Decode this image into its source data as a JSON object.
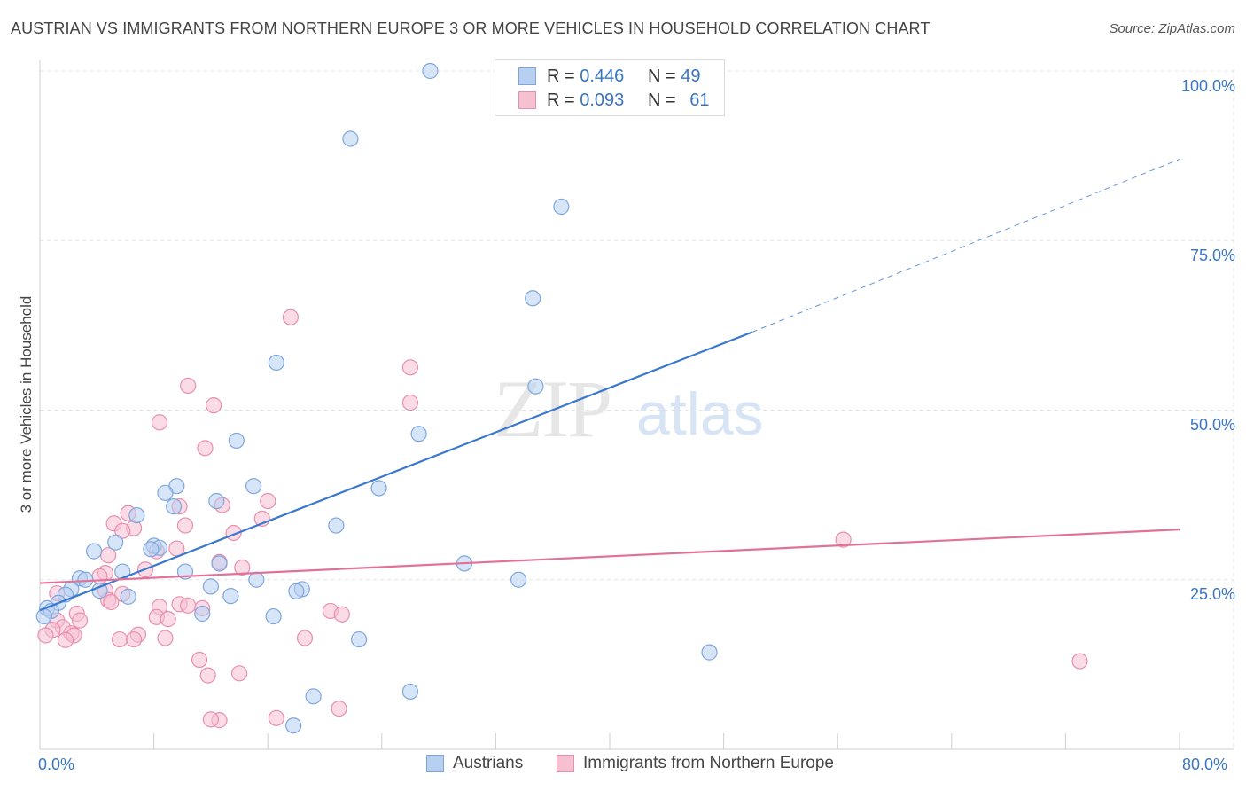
{
  "title": "AUSTRIAN VS IMMIGRANTS FROM NORTHERN EUROPE 3 OR MORE VEHICLES IN HOUSEHOLD CORRELATION CHART",
  "source": "Source: ZipAtlas.com",
  "watermark": {
    "zip": "ZIP",
    "atlas": "atlas"
  },
  "legend_top": [
    {
      "r_label": "R = ",
      "r_value": "0.446",
      "n_label": "N = ",
      "n_value": "49"
    },
    {
      "r_label": "R = ",
      "r_value": "0.093",
      "n_label": "N = ",
      "n_value": "61"
    }
  ],
  "legend_bottom": [
    {
      "label": "Austrians"
    },
    {
      "label": "Immigrants from Northern Europe"
    }
  ],
  "x_ticks": {
    "min_label": "0.0%",
    "max_label": "80.0%"
  },
  "y_ticks": [
    "100.0%",
    "75.0%",
    "50.0%",
    "25.0%"
  ],
  "colors": {
    "blue_fill": "#b7d0f2",
    "blue_stroke": "#7ea6de",
    "blue_line": "#3a78d0",
    "pink_fill": "#f7c0d1",
    "pink_stroke": "#e98fae",
    "pink_line": "#e2719a",
    "grid": "#e3e3e3",
    "tick_text": "#3a75c4"
  },
  "chart_data": {
    "type": "scatter",
    "title": "AUSTRIAN VS IMMIGRANTS FROM NORTHERN EUROPE 3 OR MORE VEHICLES IN HOUSEHOLD CORRELATION CHART",
    "xlabel": "",
    "ylabel": "3 or more Vehicles in Household",
    "xlim": [
      0,
      80
    ],
    "ylim": [
      0,
      102
    ],
    "grid": true,
    "legend_position": "bottom",
    "series": [
      {
        "name": "Austrians",
        "r": 0.446,
        "n": 49,
        "trend": {
          "x0": 0,
          "y0": 20.5,
          "x1": 50,
          "y1": 61.5,
          "dashed_to_x": 80,
          "dashed_to_y": 87
        },
        "points": [
          [
            27.4,
            100
          ],
          [
            41.8,
            100
          ],
          [
            21.8,
            90
          ],
          [
            36.6,
            80
          ],
          [
            34.6,
            66.5
          ],
          [
            16.6,
            57
          ],
          [
            34.8,
            53.5
          ],
          [
            26.6,
            46.5
          ],
          [
            13.8,
            45.5
          ],
          [
            23.8,
            38.5
          ],
          [
            9.6,
            38.8
          ],
          [
            15.0,
            38.8
          ],
          [
            8.8,
            37.8
          ],
          [
            12.4,
            36.6
          ],
          [
            9.4,
            35.8
          ],
          [
            6.8,
            34.5
          ],
          [
            20.8,
            33
          ],
          [
            5.3,
            30.5
          ],
          [
            8.0,
            30
          ],
          [
            8.4,
            29.7
          ],
          [
            3.8,
            29.2
          ],
          [
            7.8,
            29.5
          ],
          [
            12.6,
            27.4
          ],
          [
            29.8,
            27.4
          ],
          [
            10.2,
            26.2
          ],
          [
            5.8,
            26.2
          ],
          [
            2.8,
            25.2
          ],
          [
            3.2,
            25
          ],
          [
            15.2,
            25
          ],
          [
            33.6,
            25
          ],
          [
            12.0,
            24
          ],
          [
            18.4,
            23.6
          ],
          [
            18.0,
            23.3
          ],
          [
            4.2,
            23.4
          ],
          [
            2.2,
            23.6
          ],
          [
            1.8,
            22.8
          ],
          [
            6.2,
            22.5
          ],
          [
            13.4,
            22.6
          ],
          [
            1.3,
            21.6
          ],
          [
            0.5,
            20.8
          ],
          [
            0.8,
            20.4
          ],
          [
            0.3,
            19.6
          ],
          [
            11.4,
            20
          ],
          [
            16.4,
            19.6
          ],
          [
            22.4,
            16.2
          ],
          [
            47.0,
            14.3
          ],
          [
            26.0,
            8.5
          ],
          [
            19.2,
            7.8
          ],
          [
            17.8,
            3.5
          ]
        ]
      },
      {
        "name": "Immigrants from Northern Europe",
        "r": 0.093,
        "n": 61,
        "trend": {
          "x0": 0,
          "y0": 24.5,
          "x1": 80,
          "y1": 32.4
        },
        "points": [
          [
            17.6,
            63.7
          ],
          [
            26.0,
            56.3
          ],
          [
            10.4,
            53.6
          ],
          [
            12.2,
            50.7
          ],
          [
            26.0,
            51.1
          ],
          [
            8.4,
            48.2
          ],
          [
            11.6,
            44.4
          ],
          [
            16.0,
            36.6
          ],
          [
            12.8,
            36
          ],
          [
            9.8,
            35.8
          ],
          [
            6.2,
            34.8
          ],
          [
            15.6,
            34
          ],
          [
            5.2,
            33.3
          ],
          [
            6.6,
            32.6
          ],
          [
            10.2,
            33
          ],
          [
            5.8,
            32.2
          ],
          [
            13.6,
            31.9
          ],
          [
            56.4,
            30.9
          ],
          [
            9.6,
            29.6
          ],
          [
            8.2,
            29.2
          ],
          [
            4.8,
            28.6
          ],
          [
            12.6,
            27.6
          ],
          [
            14.2,
            26.8
          ],
          [
            7.4,
            26.5
          ],
          [
            4.6,
            26.0
          ],
          [
            4.2,
            25.5
          ],
          [
            1.2,
            23
          ],
          [
            4.6,
            23.4
          ],
          [
            5.8,
            22.9
          ],
          [
            4.8,
            22
          ],
          [
            5.0,
            21.7
          ],
          [
            9.8,
            21.4
          ],
          [
            10.4,
            21.2
          ],
          [
            8.4,
            21.0
          ],
          [
            11.4,
            20.8
          ],
          [
            20.4,
            20.4
          ],
          [
            21.2,
            19.9
          ],
          [
            2.6,
            20
          ],
          [
            8.2,
            19.5
          ],
          [
            9.0,
            19.2
          ],
          [
            1.2,
            19
          ],
          [
            2.8,
            19
          ],
          [
            1.6,
            18
          ],
          [
            0.9,
            17.6
          ],
          [
            2.2,
            17.1
          ],
          [
            2.4,
            16.8
          ],
          [
            0.4,
            16.8
          ],
          [
            1.8,
            16.1
          ],
          [
            6.9,
            16.9
          ],
          [
            5.6,
            16.2
          ],
          [
            6.6,
            16.2
          ],
          [
            8.8,
            16.4
          ],
          [
            18.6,
            16.4
          ],
          [
            73.0,
            13.0
          ],
          [
            11.2,
            13.2
          ],
          [
            11.8,
            10.9
          ],
          [
            14.0,
            11.2
          ],
          [
            21.0,
            6
          ],
          [
            16.6,
            4.6
          ],
          [
            12.6,
            4.3
          ],
          [
            12.0,
            4.4
          ]
        ]
      }
    ]
  }
}
